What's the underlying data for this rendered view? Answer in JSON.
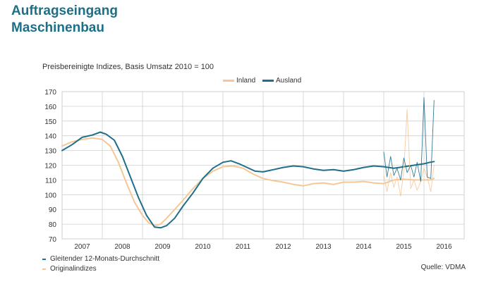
{
  "colors": {
    "inland": "#f6c796",
    "ausland": "#1f6f8b",
    "grid": "#cfcfcf",
    "axis": "#666666",
    "title": "#1b6f86"
  },
  "header": {
    "title_line1": "Auftragseingang",
    "title_line2": "Maschinenbau"
  },
  "footer": {
    "note_1": "Gleitender 12-Monats-Durchschnitt",
    "note_2": "Originalindizes",
    "source": "Quelle: VDMA"
  },
  "chart_data": {
    "type": "line",
    "title": "",
    "subtitle": "Preisbereinigte Indizes, Basis Umsatz 2010 = 100",
    "legend": {
      "placement": "top-right",
      "items": [
        "Inland",
        "Ausland"
      ]
    },
    "xlabel": "",
    "ylabel": "",
    "ylim": [
      70,
      170
    ],
    "yticks": [
      70,
      80,
      90,
      100,
      110,
      120,
      130,
      140,
      150,
      160,
      170
    ],
    "xlim": [
      2007,
      2017
    ],
    "xticks": [
      "2007",
      "2008",
      "2009",
      "2010",
      "2011",
      "2012",
      "2013",
      "2014",
      "2015",
      "2016"
    ],
    "grid": true,
    "series": [
      {
        "name": "Inland",
        "kind": "smoothed",
        "points": [
          [
            2007.0,
            133
          ],
          [
            2007.25,
            136
          ],
          [
            2007.5,
            137.5
          ],
          [
            2007.75,
            138.5
          ],
          [
            2008.0,
            137.5
          ],
          [
            2008.2,
            133
          ],
          [
            2008.4,
            122
          ],
          [
            2008.6,
            108
          ],
          [
            2008.8,
            95
          ],
          [
            2009.0,
            86
          ],
          [
            2009.15,
            81
          ],
          [
            2009.3,
            79
          ],
          [
            2009.45,
            80
          ],
          [
            2009.6,
            84
          ],
          [
            2009.8,
            90
          ],
          [
            2010.0,
            96
          ],
          [
            2010.25,
            104
          ],
          [
            2010.5,
            111
          ],
          [
            2010.75,
            116
          ],
          [
            2011.0,
            119
          ],
          [
            2011.25,
            119.5
          ],
          [
            2011.5,
            118
          ],
          [
            2011.75,
            114
          ],
          [
            2012.0,
            111
          ],
          [
            2012.25,
            109.5
          ],
          [
            2012.5,
            108.5
          ],
          [
            2012.75,
            107
          ],
          [
            2013.0,
            106
          ],
          [
            2013.25,
            107.5
          ],
          [
            2013.5,
            108
          ],
          [
            2013.75,
            107
          ],
          [
            2014.0,
            108.5
          ],
          [
            2014.25,
            108.5
          ],
          [
            2014.5,
            109
          ],
          [
            2014.75,
            108
          ],
          [
            2015.0,
            107.5
          ],
          [
            2015.25,
            110
          ],
          [
            2015.5,
            110.5
          ],
          [
            2015.75,
            110
          ],
          [
            2016.0,
            110
          ],
          [
            2016.15,
            110
          ],
          [
            2016.25,
            111
          ]
        ]
      },
      {
        "name": "Ausland",
        "kind": "smoothed",
        "points": [
          [
            2007.0,
            130
          ],
          [
            2007.25,
            134
          ],
          [
            2007.5,
            139
          ],
          [
            2007.75,
            140.5
          ],
          [
            2007.95,
            142.5
          ],
          [
            2008.1,
            141
          ],
          [
            2008.3,
            137
          ],
          [
            2008.5,
            126
          ],
          [
            2008.7,
            112
          ],
          [
            2008.9,
            98
          ],
          [
            2009.1,
            86
          ],
          [
            2009.3,
            78
          ],
          [
            2009.45,
            77.5
          ],
          [
            2009.6,
            79
          ],
          [
            2009.8,
            84
          ],
          [
            2010.0,
            92
          ],
          [
            2010.25,
            101
          ],
          [
            2010.5,
            111
          ],
          [
            2010.75,
            118
          ],
          [
            2011.0,
            122
          ],
          [
            2011.2,
            123
          ],
          [
            2011.4,
            121
          ],
          [
            2011.6,
            118.5
          ],
          [
            2011.8,
            116
          ],
          [
            2012.0,
            115.5
          ],
          [
            2012.25,
            117
          ],
          [
            2012.5,
            118.5
          ],
          [
            2012.75,
            119.5
          ],
          [
            2013.0,
            119
          ],
          [
            2013.25,
            117.5
          ],
          [
            2013.5,
            116.5
          ],
          [
            2013.75,
            117
          ],
          [
            2014.0,
            116
          ],
          [
            2014.25,
            117
          ],
          [
            2014.5,
            118.5
          ],
          [
            2014.75,
            119.5
          ],
          [
            2015.0,
            119
          ],
          [
            2015.25,
            118
          ],
          [
            2015.5,
            119
          ],
          [
            2015.75,
            120
          ],
          [
            2016.0,
            121
          ],
          [
            2016.15,
            122
          ],
          [
            2016.25,
            122.5
          ]
        ]
      },
      {
        "name": "Inland",
        "kind": "original",
        "points": [
          [
            2015.0,
            113
          ],
          [
            2015.08,
            102
          ],
          [
            2015.17,
            115
          ],
          [
            2015.25,
            105
          ],
          [
            2015.33,
            112
          ],
          [
            2015.42,
            99
          ],
          [
            2015.5,
            117
          ],
          [
            2015.58,
            158
          ],
          [
            2015.67,
            104
          ],
          [
            2015.75,
            110
          ],
          [
            2015.83,
            103
          ],
          [
            2015.92,
            109
          ],
          [
            2016.0,
            118
          ],
          [
            2016.08,
            112
          ],
          [
            2016.17,
            102
          ],
          [
            2016.25,
            120
          ]
        ]
      },
      {
        "name": "Ausland",
        "kind": "original",
        "points": [
          [
            2015.0,
            129
          ],
          [
            2015.08,
            112
          ],
          [
            2015.17,
            126
          ],
          [
            2015.25,
            113
          ],
          [
            2015.33,
            118
          ],
          [
            2015.42,
            110
          ],
          [
            2015.5,
            125
          ],
          [
            2015.58,
            115
          ],
          [
            2015.67,
            120
          ],
          [
            2015.75,
            112
          ],
          [
            2015.83,
            122
          ],
          [
            2015.92,
            109
          ],
          [
            2016.0,
            166
          ],
          [
            2016.08,
            112
          ],
          [
            2016.17,
            111
          ],
          [
            2016.25,
            164
          ]
        ]
      }
    ]
  }
}
